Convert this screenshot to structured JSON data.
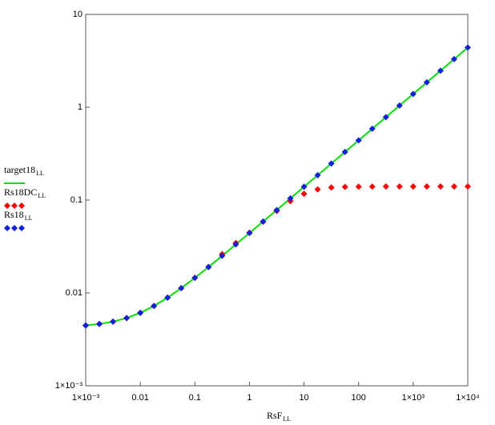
{
  "chart_data": {
    "type": "line",
    "x_label": "RsF",
    "x_label_sub": "LL",
    "xscale": "log",
    "yscale": "log",
    "xlim": [
      0.001,
      10000
    ],
    "ylim": [
      0.001,
      10
    ],
    "xticks": [
      {
        "value": 0.001,
        "label": "1×10⁻³"
      },
      0.01,
      0.1,
      1,
      10,
      100,
      {
        "value": 1000,
        "label": "1×10³"
      },
      {
        "value": 10000,
        "label": "1×10⁴"
      }
    ],
    "yticks": [
      {
        "value": 0.001,
        "label": "1×10⁻³"
      },
      0.01,
      0.1,
      1,
      10
    ],
    "x": [
      0.001,
      0.001778,
      0.003162,
      0.005623,
      0.01,
      0.01778,
      0.03162,
      0.05623,
      0.1,
      0.1778,
      0.3162,
      0.5623,
      1,
      1.778,
      3.162,
      5.623,
      10,
      17.78,
      31.62,
      56.23,
      100,
      177.8,
      316.2,
      562.3,
      1000,
      1778,
      3162,
      5623,
      10000
    ],
    "series": [
      {
        "name": "target18",
        "name_sub": "LL",
        "style": "line",
        "color": "#00e000",
        "values": [
          0.00447,
          0.00463,
          0.00491,
          0.00537,
          0.00611,
          0.00724,
          0.0089,
          0.01126,
          0.01455,
          0.01903,
          0.0251,
          0.0333,
          0.0442,
          0.0588,
          0.0781,
          0.1044,
          0.1392,
          0.1855,
          0.2474,
          0.33,
          0.44,
          0.587,
          0.782,
          1.043,
          1.391,
          1.855,
          2.474,
          3.299,
          4.4
        ]
      },
      {
        "name": "Rs18DC",
        "name_sub": "LL",
        "style": "points",
        "color": "#ff0000",
        "values": [
          0.00447,
          0.00463,
          0.00491,
          0.00537,
          0.00611,
          0.00724,
          0.0089,
          0.01126,
          0.01455,
          0.01903,
          0.0262,
          0.0345,
          0.0445,
          0.0584,
          0.0763,
          0.0976,
          0.117,
          0.1305,
          0.1366,
          0.1389,
          0.1396,
          0.1399,
          0.14,
          0.14,
          0.14,
          0.14,
          0.14,
          0.14,
          0.14
        ]
      },
      {
        "name": "Rs18",
        "name_sub": "LL",
        "style": "points",
        "color": "#1020e0",
        "values": [
          0.00447,
          0.00463,
          0.00491,
          0.00537,
          0.00611,
          0.00724,
          0.0089,
          0.01126,
          0.01455,
          0.01903,
          0.0251,
          0.0333,
          0.0442,
          0.0588,
          0.0781,
          0.1044,
          0.1392,
          0.1855,
          0.2474,
          0.33,
          0.44,
          0.587,
          0.782,
          1.043,
          1.391,
          1.855,
          2.474,
          3.299,
          4.4
        ]
      }
    ]
  }
}
